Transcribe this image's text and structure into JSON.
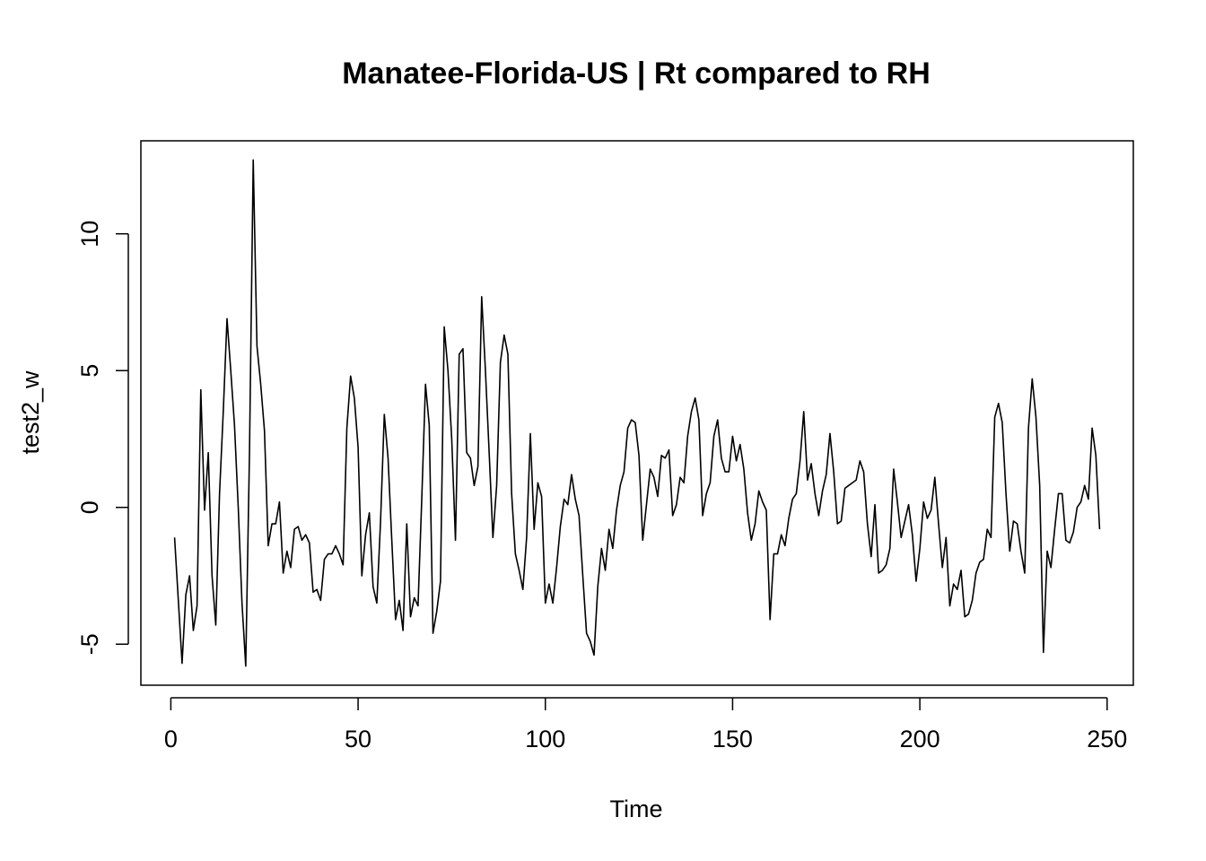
{
  "chart_data": {
    "type": "line",
    "title": "Manatee-Florida-US | Rt compared to RH",
    "xlabel": "Time",
    "ylabel": "test2_w",
    "xlim": [
      -8,
      257
    ],
    "ylim": [
      -6.5,
      13.4
    ],
    "x_ticks": [
      0,
      50,
      100,
      150,
      200,
      250
    ],
    "x_tick_labels": [
      "0",
      "50",
      "100",
      "150",
      "200",
      "250"
    ],
    "y_ticks": [
      -5,
      0,
      5,
      10
    ],
    "y_tick_labels": [
      "-5",
      "0",
      "5",
      "10"
    ],
    "grid": false,
    "series": [
      {
        "color": "#000000",
        "x_start": 1,
        "values": [
          -1.1,
          -3.4,
          -5.7,
          -3.2,
          -2.5,
          -4.5,
          -3.6,
          4.3,
          -0.1,
          2.0,
          -2.5,
          -4.3,
          0.5,
          3.5,
          6.9,
          5.0,
          3.0,
          0.0,
          -3.5,
          -5.8,
          2.0,
          12.7,
          5.9,
          4.5,
          2.8,
          -1.4,
          -0.6,
          -0.6,
          0.2,
          -2.4,
          -1.6,
          -2.2,
          -0.8,
          -0.7,
          -1.2,
          -1.0,
          -1.3,
          -3.1,
          -3.0,
          -3.4,
          -1.9,
          -1.7,
          -1.7,
          -1.4,
          -1.7,
          -2.1,
          2.9,
          4.8,
          4.0,
          2.2,
          -2.5,
          -1.0,
          -0.2,
          -2.9,
          -3.5,
          -0.5,
          3.4,
          1.8,
          -1.2,
          -4.1,
          -3.4,
          -4.5,
          -0.6,
          -4.0,
          -3.3,
          -3.6,
          0.3,
          4.5,
          3.0,
          -4.6,
          -3.8,
          -2.7,
          6.6,
          5.0,
          2.5,
          -1.2,
          5.6,
          5.8,
          2.0,
          1.8,
          0.8,
          1.5,
          7.7,
          5.0,
          2.0,
          -1.1,
          0.8,
          5.3,
          6.3,
          5.6,
          0.5,
          -1.7,
          -2.3,
          -3.0,
          -1.1,
          2.7,
          -0.8,
          0.9,
          0.4,
          -3.5,
          -2.8,
          -3.5,
          -2.2,
          -0.7,
          0.3,
          0.1,
          1.2,
          0.3,
          -0.3,
          -2.5,
          -4.6,
          -4.9,
          -5.4,
          -2.9,
          -1.5,
          -2.3,
          -0.8,
          -1.5,
          -0.1,
          0.8,
          1.3,
          2.9,
          3.2,
          3.1,
          1.9,
          -1.2,
          0.1,
          1.4,
          1.1,
          0.4,
          1.9,
          1.8,
          2.1,
          -0.3,
          0.1,
          1.1,
          0.9,
          2.6,
          3.5,
          4.0,
          3.2,
          -0.3,
          0.5,
          0.9,
          2.6,
          3.2,
          1.8,
          1.3,
          1.3,
          2.6,
          1.7,
          2.3,
          1.4,
          -0.2,
          -1.2,
          -0.6,
          0.6,
          0.2,
          -0.1,
          -4.1,
          -1.7,
          -1.7,
          -1.0,
          -1.4,
          -0.4,
          0.3,
          0.5,
          1.7,
          3.5,
          1.0,
          1.6,
          0.5,
          -0.3,
          0.6,
          1.2,
          2.7,
          1.3,
          -0.6,
          -0.5,
          0.7,
          0.8,
          0.9,
          1.0,
          1.7,
          1.3,
          -0.6,
          -1.8,
          0.1,
          -2.4,
          -2.3,
          -2.1,
          -1.5,
          1.4,
          0.2,
          -1.1,
          -0.5,
          0.1,
          -1.0,
          -2.7,
          -1.5,
          0.2,
          -0.4,
          -0.1,
          1.1,
          -0.6,
          -2.2,
          -1.1,
          -3.6,
          -2.8,
          -3.0,
          -2.3,
          -4.0,
          -3.9,
          -3.4,
          -2.4,
          -2.0,
          -1.9,
          -0.8,
          -1.1,
          3.3,
          3.8,
          3.1,
          0.5,
          -1.6,
          -0.5,
          -0.6,
          -1.6,
          -2.4,
          2.9,
          4.7,
          3.3,
          0.8,
          -5.3,
          -1.6,
          -2.2,
          -0.8,
          0.5,
          0.5,
          -1.2,
          -1.3,
          -0.9,
          0.0,
          0.2,
          0.8,
          0.3,
          2.9,
          1.9,
          -0.8
        ]
      }
    ]
  }
}
